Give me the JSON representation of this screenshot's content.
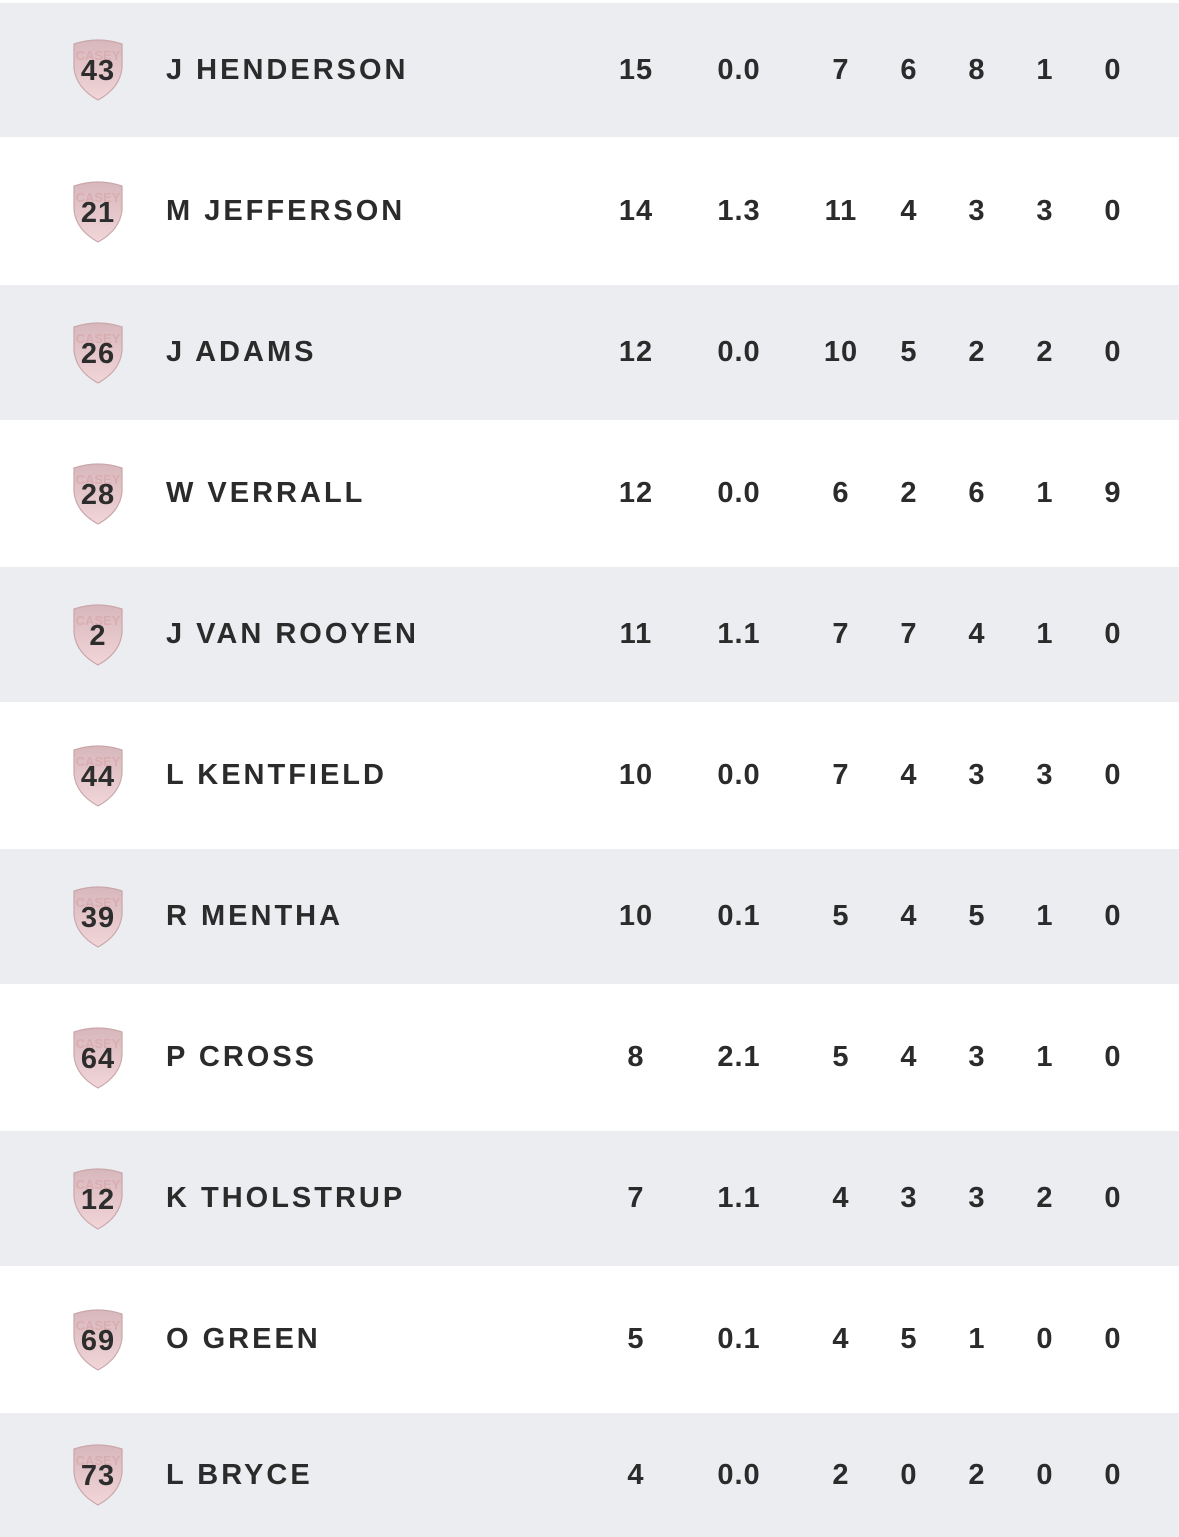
{
  "colors": {
    "row_alt": "#ecedf0",
    "row_plain": "#ffffff",
    "text": "#2b2b2b",
    "badge_shield": "#e6c9cc",
    "badge_text": "#d9a9ad"
  },
  "badge_icon": "club-shield-icon",
  "badge_text": "CASEY",
  "players": [
    {
      "number": "43",
      "name": "J HENDERSON",
      "stats": [
        "15",
        "0.0",
        "7",
        "6",
        "8",
        "1",
        "0"
      ]
    },
    {
      "number": "21",
      "name": "M JEFFERSON",
      "stats": [
        "14",
        "1.3",
        "11",
        "4",
        "3",
        "3",
        "0"
      ]
    },
    {
      "number": "26",
      "name": "J ADAMS",
      "stats": [
        "12",
        "0.0",
        "10",
        "5",
        "2",
        "2",
        "0"
      ]
    },
    {
      "number": "28",
      "name": "W VERRALL",
      "stats": [
        "12",
        "0.0",
        "6",
        "2",
        "6",
        "1",
        "9"
      ]
    },
    {
      "number": "2",
      "name": "J VAN ROOYEN",
      "stats": [
        "11",
        "1.1",
        "7",
        "7",
        "4",
        "1",
        "0"
      ]
    },
    {
      "number": "44",
      "name": "L KENTFIELD",
      "stats": [
        "10",
        "0.0",
        "7",
        "4",
        "3",
        "3",
        "0"
      ]
    },
    {
      "number": "39",
      "name": "R MENTHA",
      "stats": [
        "10",
        "0.1",
        "5",
        "4",
        "5",
        "1",
        "0"
      ]
    },
    {
      "number": "64",
      "name": "P CROSS",
      "stats": [
        "8",
        "2.1",
        "5",
        "4",
        "3",
        "1",
        "0"
      ]
    },
    {
      "number": "12",
      "name": "K THOLSTRUP",
      "stats": [
        "7",
        "1.1",
        "4",
        "3",
        "3",
        "2",
        "0"
      ]
    },
    {
      "number": "69",
      "name": "O GREEN",
      "stats": [
        "5",
        "0.1",
        "4",
        "5",
        "1",
        "0",
        "0"
      ]
    },
    {
      "number": "73",
      "name": "L BRYCE",
      "stats": [
        "4",
        "0.0",
        "2",
        "0",
        "2",
        "0",
        "0"
      ]
    }
  ]
}
